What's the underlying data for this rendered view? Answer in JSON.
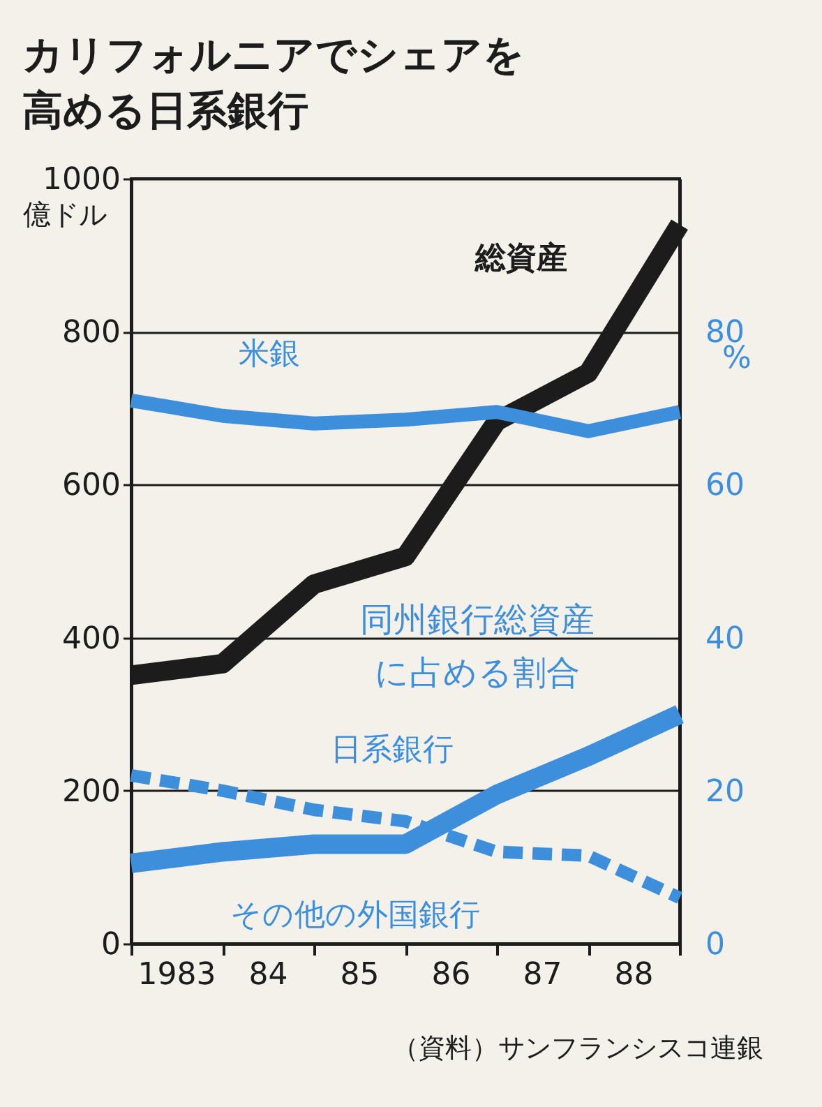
{
  "chart_data": {
    "type": "line",
    "title": "カリフォルニアでシェアを高める日系銀行",
    "ylabel": "億ドル",
    "y2label": "%",
    "x": [
      1982.5,
      1983.5,
      1984.5,
      1985.5,
      1986.5,
      1987.5,
      1988.5
    ],
    "xlim": [
      1982.5,
      1988.5
    ],
    "xticks": [
      {
        "value": 1982.5,
        "label": null
      },
      1983,
      {
        "value": 1983.5,
        "label": null
      },
      {
        "value": 1984,
        "label": "84"
      },
      {
        "value": 1984.5,
        "label": null
      },
      {
        "value": 1985,
        "label": "85"
      },
      {
        "value": 1985.5,
        "label": null
      },
      {
        "value": 1986,
        "label": "86"
      },
      {
        "value": 1986.5,
        "label": null
      },
      {
        "value": 1987,
        "label": "87"
      },
      {
        "value": 1987.5,
        "label": null
      },
      {
        "value": 1988,
        "label": "88"
      },
      {
        "value": 1988.5,
        "label": null
      }
    ],
    "ylim": [
      0,
      1000
    ],
    "yticks": [
      0,
      200,
      400,
      600,
      800,
      1000
    ],
    "y2lim": [
      0,
      100
    ],
    "y2ticks": [
      0,
      20,
      40,
      60,
      80
    ],
    "grid": "y",
    "annotations": [
      "同州銀行総資産に占める割合",
      "（資料）サンフランシスコ連銀"
    ],
    "series": [
      {
        "name": "総資産",
        "color": "#1c1c1c",
        "values": [
          351,
          366,
          470,
          506,
          683,
          746,
          940
        ]
      },
      {
        "name": "米銀",
        "color": "#3d8fdb",
        "axis": "y2",
        "values": [
          71,
          69,
          68,
          68.5,
          69.5,
          67,
          69.5
        ]
      },
      {
        "name": "日系銀行",
        "color": "#3d8fdb",
        "axis": "y2",
        "values": [
          10.5,
          12,
          13,
          13,
          19.5,
          24.5,
          30
        ]
      },
      {
        "name": "その他の外国銀行",
        "color": "#3d8fdb",
        "axis": "y2",
        "line_style": "dashed",
        "values": [
          22,
          20,
          17.5,
          16,
          12,
          11.5,
          6
        ]
      }
    ]
  }
}
